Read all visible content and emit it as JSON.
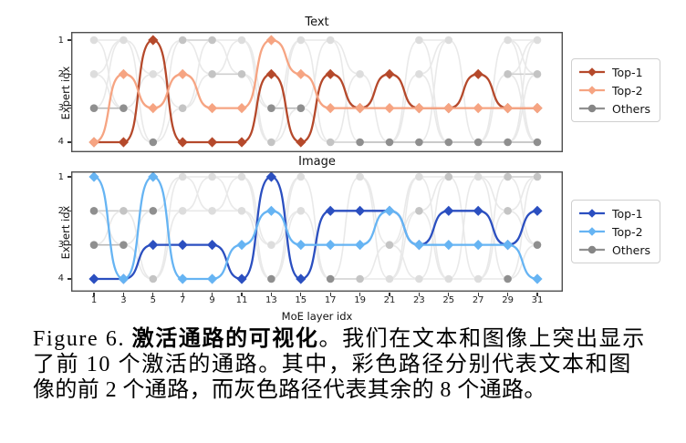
{
  "figure": {
    "caption": {
      "line1_prefix": "Figure 6. ",
      "line1_bold": "激活通路的可视化",
      "line1_rest": "。我们在文本和图像上突出显示",
      "line2": "了前 10 个激活的通路。其中，彩色路径分别代表文本和图",
      "line3": "像的前 2 个通路，而灰色路径代表其余的 8 个通路。"
    }
  },
  "chart_data": [
    {
      "type": "line",
      "title": "Text",
      "xlabel": "",
      "ylabel": "Expert idx",
      "x": [
        1,
        3,
        5,
        7,
        9,
        11,
        13,
        15,
        17,
        19,
        21,
        23,
        25,
        27,
        29,
        31
      ],
      "yticks": [
        "1",
        "2",
        "3",
        "4"
      ],
      "y_axis_note": "expert index 1 at top, 4 at bottom",
      "grid": false,
      "legend_position": "right of plot",
      "series": [
        {
          "name": "Top-1",
          "color": "#b5492b",
          "marker": "diamond",
          "values": [
            4,
            4,
            1,
            4,
            4,
            4,
            2,
            4,
            2,
            3,
            2,
            3,
            3,
            2,
            3,
            3
          ]
        },
        {
          "name": "Top-2",
          "color": "#f6a482",
          "marker": "diamond",
          "values": [
            4,
            2,
            3,
            2,
            3,
            3,
            1,
            2,
            3,
            3,
            3,
            3,
            3,
            3,
            3,
            3
          ]
        }
      ],
      "others": {
        "name": "Others",
        "marker": "circle",
        "dot_colors": {
          "d": "#8f8f8f",
          "m": "#c4c4c4",
          "l": "#dddddd"
        },
        "dots": [
          [
            1,
            1,
            "l"
          ],
          [
            1,
            2,
            "l"
          ],
          [
            1,
            3,
            "d"
          ],
          [
            3,
            1,
            "l"
          ],
          [
            3,
            3,
            "d"
          ],
          [
            5,
            2,
            "l"
          ],
          [
            5,
            4,
            "d"
          ],
          [
            7,
            1,
            "m"
          ],
          [
            7,
            3,
            "m"
          ],
          [
            9,
            1,
            "m"
          ],
          [
            9,
            2,
            "m"
          ],
          [
            11,
            1,
            "l"
          ],
          [
            11,
            2,
            "m"
          ],
          [
            13,
            3,
            "d"
          ],
          [
            13,
            4,
            "m"
          ],
          [
            15,
            1,
            "l"
          ],
          [
            15,
            3,
            "d"
          ],
          [
            17,
            1,
            "l"
          ],
          [
            17,
            4,
            "m"
          ],
          [
            19,
            2,
            "l"
          ],
          [
            19,
            4,
            "d"
          ],
          [
            21,
            4,
            "d"
          ],
          [
            23,
            1,
            "l"
          ],
          [
            23,
            2,
            "l"
          ],
          [
            23,
            4,
            "d"
          ],
          [
            25,
            1,
            "l"
          ],
          [
            25,
            4,
            "d"
          ],
          [
            27,
            4,
            "d"
          ],
          [
            29,
            1,
            "l"
          ],
          [
            29,
            2,
            "m"
          ],
          [
            29,
            4,
            "d"
          ],
          [
            31,
            1,
            "l"
          ],
          [
            31,
            2,
            "m"
          ],
          [
            31,
            4,
            "d"
          ]
        ]
      },
      "legend": [
        "Top-1",
        "Top-2",
        "Others"
      ]
    },
    {
      "type": "line",
      "title": "Image",
      "xlabel": "MoE layer idx",
      "ylabel": "Expert idx",
      "x": [
        1,
        3,
        5,
        7,
        9,
        11,
        13,
        15,
        17,
        19,
        21,
        23,
        25,
        27,
        29,
        31
      ],
      "xtick_labels": [
        "1",
        "3",
        "5",
        "7",
        "9",
        "11",
        "13",
        "15",
        "17",
        "19",
        "21",
        "23",
        "25",
        "27",
        "29",
        "31"
      ],
      "yticks": [
        "1",
        "2",
        "3",
        "4"
      ],
      "y_axis_note": "expert index 1 at top, 4 at bottom",
      "grid": false,
      "legend_position": "right of plot",
      "series": [
        {
          "name": "Top-1",
          "color": "#2b4fc0",
          "marker": "diamond",
          "values": [
            4,
            4,
            3,
            3,
            3,
            4,
            1,
            4,
            2,
            2,
            2,
            3,
            2,
            2,
            3,
            2
          ]
        },
        {
          "name": "Top-2",
          "color": "#66b4f3",
          "marker": "diamond",
          "values": [
            1,
            4,
            1,
            4,
            4,
            3,
            2,
            3,
            3,
            3,
            2,
            3,
            3,
            3,
            3,
            4
          ]
        }
      ],
      "others": {
        "name": "Others",
        "marker": "circle",
        "dot_colors": {
          "d": "#8f8f8f",
          "m": "#c4c4c4",
          "l": "#dddddd"
        },
        "dots": [
          [
            1,
            2,
            "d"
          ],
          [
            1,
            3,
            "d"
          ],
          [
            3,
            2,
            "m"
          ],
          [
            3,
            3,
            "d"
          ],
          [
            5,
            2,
            "d"
          ],
          [
            5,
            4,
            "m"
          ],
          [
            7,
            1,
            "l"
          ],
          [
            7,
            2,
            "l"
          ],
          [
            9,
            1,
            "l"
          ],
          [
            9,
            2,
            "l"
          ],
          [
            11,
            1,
            "l"
          ],
          [
            11,
            2,
            "l"
          ],
          [
            13,
            3,
            "l"
          ],
          [
            13,
            4,
            "d"
          ],
          [
            15,
            1,
            "l"
          ],
          [
            15,
            2,
            "l"
          ],
          [
            17,
            4,
            "d"
          ],
          [
            19,
            1,
            "l"
          ],
          [
            19,
            4,
            "m"
          ],
          [
            21,
            3,
            "m"
          ],
          [
            21,
            4,
            "l"
          ],
          [
            23,
            1,
            "l"
          ],
          [
            23,
            2,
            "m"
          ],
          [
            23,
            4,
            "l"
          ],
          [
            25,
            1,
            "m"
          ],
          [
            25,
            4,
            "l"
          ],
          [
            27,
            1,
            "l"
          ],
          [
            27,
            4,
            "l"
          ],
          [
            29,
            1,
            "m"
          ],
          [
            29,
            2,
            "m"
          ],
          [
            29,
            4,
            "d"
          ],
          [
            31,
            1,
            "m"
          ],
          [
            31,
            3,
            "d"
          ]
        ]
      },
      "legend": [
        "Top-1",
        "Top-2",
        "Others"
      ]
    }
  ],
  "style_colors": {
    "others_legend_line": "#919191",
    "others_legend_dot": "#868686",
    "frame": "#4f4f4f",
    "gray_path_light": "#e9e9e9",
    "gray_path_mid": "#cfcfcf",
    "gray_path_dark": "#b8b8b8"
  }
}
